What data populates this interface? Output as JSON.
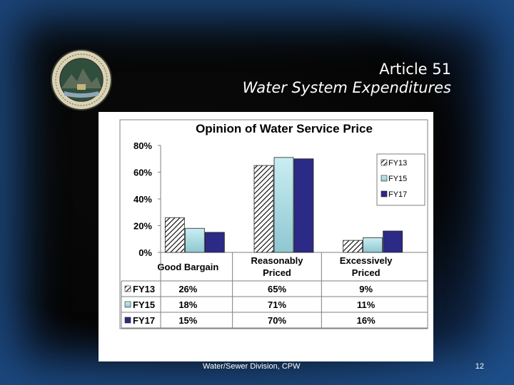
{
  "slide": {
    "title_line1": "Article 51",
    "title_line2": "Water System Expenditures",
    "footer": "Water/Sewer Division, CPW",
    "page_number": "12"
  },
  "colors": {
    "fy13_fill": "hatch-black-white",
    "fy15_fill": "#a9d8df",
    "fy17_fill": "#2b2a86",
    "border": "#7f7f7f"
  },
  "chart_data": {
    "type": "bar",
    "title": "Opinion of Water Service Price",
    "categories": [
      "Good Bargain",
      "Reasonably Priced",
      "Excessively Priced"
    ],
    "category_lines": [
      [
        "Good Bargain"
      ],
      [
        "Reasonably",
        "Priced"
      ],
      [
        "Excessively",
        "Priced"
      ]
    ],
    "series": [
      {
        "name": "FY13",
        "legend_label": "FY13",
        "values": [
          26,
          65,
          9
        ],
        "labels": [
          "26%",
          "65%",
          "9%"
        ]
      },
      {
        "name": "FY15",
        "legend_label": "FY15",
        "values": [
          18,
          71,
          11
        ],
        "labels": [
          "18%",
          "71%",
          "11%"
        ]
      },
      {
        "name": "FY17",
        "legend_label": "FY17",
        "values": [
          15,
          70,
          16
        ],
        "labels": [
          "15%",
          "70%",
          "16%"
        ]
      }
    ],
    "ylim": [
      0,
      80
    ],
    "yticks": [
      0,
      20,
      40,
      60,
      80
    ],
    "ytick_labels": [
      "0%",
      "20%",
      "40%",
      "60%",
      "80%"
    ],
    "xlabel": "",
    "ylabel": "",
    "grid": false,
    "legend_position": "right",
    "data_table": true
  }
}
